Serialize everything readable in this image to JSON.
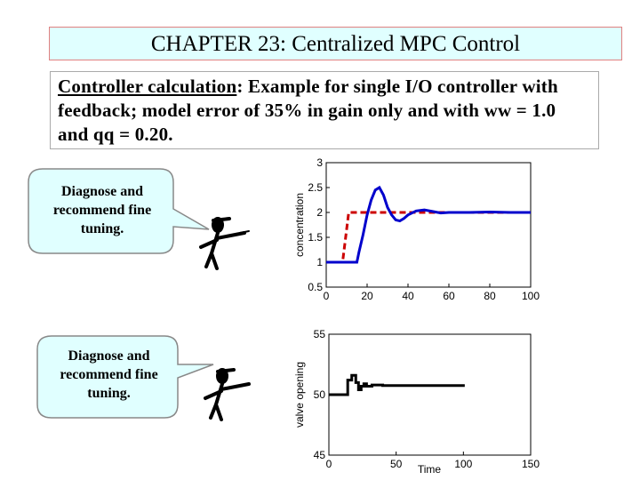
{
  "slide": {
    "title": "CHAPTER 23: Centralized MPC Control",
    "text_heading": "Controller calculation",
    "text_body": ": Example for single I/O controller with feedback; model error of 35% in gain only and with ww = 1.0 and qq = 0.20."
  },
  "callouts": [
    "Diagnose and recommend fine tuning.",
    "Diagnose and recommend fine tuning."
  ],
  "chart_data": [
    {
      "type": "line",
      "ylabel": "concentration",
      "xlim": [
        0,
        100
      ],
      "ylim": [
        0.5,
        3
      ],
      "xticks": [
        0,
        20,
        40,
        60,
        80,
        100
      ],
      "yticks": [
        0.5,
        1,
        1.5,
        2,
        2.5,
        3
      ],
      "series": [
        {
          "color": "#cc0000",
          "style": "dashed",
          "x": [
            0,
            8,
            11,
            100
          ],
          "values": [
            1,
            1,
            2,
            2
          ]
        },
        {
          "color": "#0000cc",
          "style": "solid",
          "x": [
            0,
            15,
            16,
            18,
            20,
            22,
            24,
            26,
            28,
            30,
            32,
            34,
            36,
            38,
            40,
            44,
            48,
            52,
            56,
            60,
            70,
            80,
            90,
            100
          ],
          "values": [
            1,
            1,
            1.2,
            1.55,
            1.95,
            2.25,
            2.45,
            2.5,
            2.35,
            2.1,
            1.95,
            1.85,
            1.83,
            1.88,
            1.95,
            2.03,
            2.05,
            2.02,
            1.99,
            2.0,
            2.0,
            2.01,
            2.0,
            2.0
          ]
        }
      ]
    },
    {
      "type": "line",
      "xlabel": "Time",
      "ylabel": "valve opening",
      "xlim": [
        0,
        150
      ],
      "ylim": [
        45,
        55
      ],
      "xticks": [
        0,
        50,
        100,
        150
      ],
      "yticks": [
        45,
        50,
        55
      ],
      "series": [
        {
          "color": "#000000",
          "style": "solid",
          "x": [
            0,
            14,
            14,
            17,
            17,
            20,
            20,
            22,
            22,
            24,
            24,
            26,
            26,
            28,
            28,
            32,
            32,
            40,
            40,
            101
          ],
          "values": [
            50,
            50,
            51.2,
            51.2,
            51.6,
            51.6,
            51.0,
            51.0,
            50.4,
            50.4,
            50.7,
            50.7,
            50.9,
            50.9,
            50.7,
            50.7,
            50.8,
            50.8,
            50.75,
            50.75
          ]
        }
      ]
    }
  ]
}
